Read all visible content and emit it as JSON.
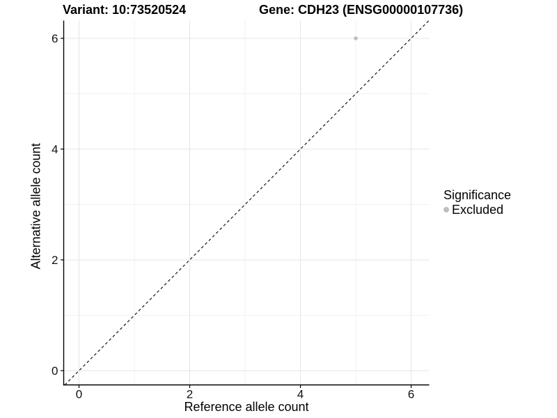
{
  "page": {
    "background": "#ffffff"
  },
  "chart_data": {
    "type": "scatter",
    "titles": {
      "left": "Variant: 10:73520524",
      "right": "Gene: CDH23 (ENSG00000107736)"
    },
    "xlabel": "Reference allele count",
    "ylabel": "Alternative allele count",
    "xlim": [
      -0.28,
      6.33
    ],
    "ylim": [
      -0.28,
      6.33
    ],
    "x_ticks": [
      0,
      2,
      4,
      6
    ],
    "y_ticks": [
      0,
      2,
      4,
      6
    ],
    "x_minor": [
      1,
      3,
      5
    ],
    "y_minor": [
      1,
      3,
      5
    ],
    "grid": true,
    "points": [
      {
        "x": 5,
        "y": 6,
        "significance": "Excluded"
      }
    ],
    "reference_line": {
      "slope": 1,
      "intercept": 0,
      "style": "dashed",
      "color": "#000000"
    },
    "legend": {
      "title": "Significance",
      "position": "right",
      "entries": [
        {
          "label": "Excluded",
          "color": "#bebebe",
          "marker": "circle"
        }
      ]
    },
    "colors": {
      "point": "#bebebe",
      "grid_major": "#e6e6e6",
      "grid_minor": "#f1f1f1",
      "axis_line": "#000000",
      "tick_text": "#111111",
      "panel_background": "#ffffff"
    }
  }
}
